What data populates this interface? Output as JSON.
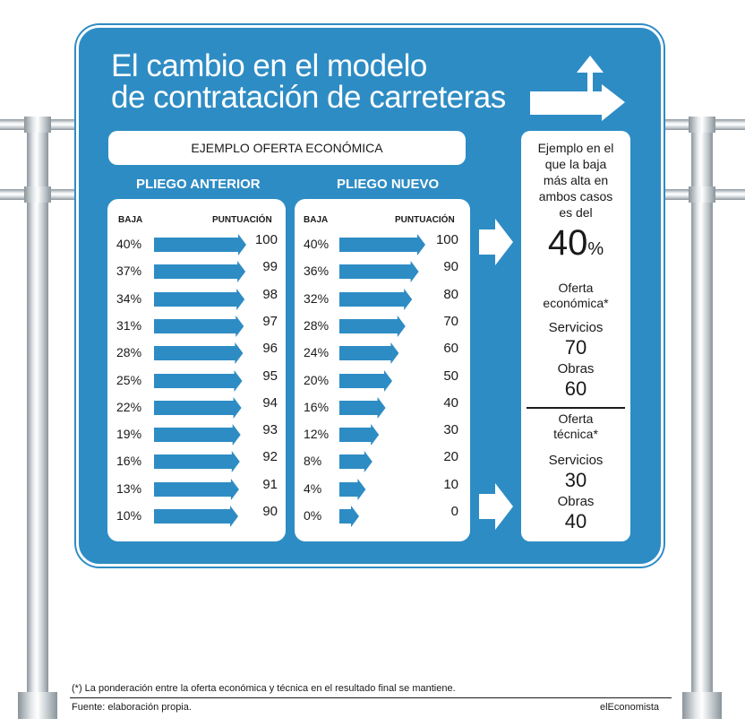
{
  "title_line1": "El cambio en el modelo",
  "title_line2": "de contratación de carreteras",
  "example_label": "EJEMPLO OFERTA ECONÓMICA",
  "chart_data": [
    {
      "type": "bar",
      "title": "PLIEGO ANTERIOR",
      "col_baja": "BAJA",
      "col_puntuacion": "PUNTUACIÓN",
      "rows": [
        {
          "baja": "40%",
          "puntuacion": 100
        },
        {
          "baja": "37%",
          "puntuacion": 99
        },
        {
          "baja": "34%",
          "puntuacion": 98
        },
        {
          "baja": "31%",
          "puntuacion": 97
        },
        {
          "baja": "28%",
          "puntuacion": 96
        },
        {
          "baja": "25%",
          "puntuacion": 95
        },
        {
          "baja": "22%",
          "puntuacion": 94
        },
        {
          "baja": "19%",
          "puntuacion": 93
        },
        {
          "baja": "16%",
          "puntuacion": 92
        },
        {
          "baja": "13%",
          "puntuacion": 91
        },
        {
          "baja": "10%",
          "puntuacion": 90
        }
      ]
    },
    {
      "type": "bar",
      "title": "PLIEGO NUEVO",
      "col_baja": "BAJA",
      "col_puntuacion": "PUNTUACIÓN",
      "rows": [
        {
          "baja": "40%",
          "puntuacion": 100
        },
        {
          "baja": "36%",
          "puntuacion": 90
        },
        {
          "baja": "32%",
          "puntuacion": 80
        },
        {
          "baja": "28%",
          "puntuacion": 70
        },
        {
          "baja": "24%",
          "puntuacion": 60
        },
        {
          "baja": "20%",
          "puntuacion": 50
        },
        {
          "baja": "16%",
          "puntuacion": 40
        },
        {
          "baja": "12%",
          "puntuacion": 30
        },
        {
          "baja": "8%",
          "puntuacion": 20
        },
        {
          "baja": "4%",
          "puntuacion": 10
        },
        {
          "baja": "0%",
          "puntuacion": 0
        }
      ]
    }
  ],
  "side": {
    "intro": [
      "Ejemplo en el",
      "que la baja",
      "más alta en",
      "ambos casos",
      "es del"
    ],
    "big_value": "40",
    "big_unit": "%",
    "oferta_economica": [
      "Oferta",
      "económica*"
    ],
    "servicios_label": "Servicios",
    "obras_label": "Obras",
    "econ_servicios": "70",
    "econ_obras": "60",
    "oferta_tecnica": [
      "Oferta",
      "técnica*"
    ],
    "tec_servicios": "30",
    "tec_obras": "40"
  },
  "footnote": "(*) La ponderación entre la oferta económica y técnica en el resultado final se mantiene.",
  "source": "Fuente: elaboración propia.",
  "brand": "elEconomista",
  "colors": {
    "sign_blue": "#2e8cc4",
    "arrow_blue": "#2e8cc4",
    "white": "#ffffff"
  }
}
